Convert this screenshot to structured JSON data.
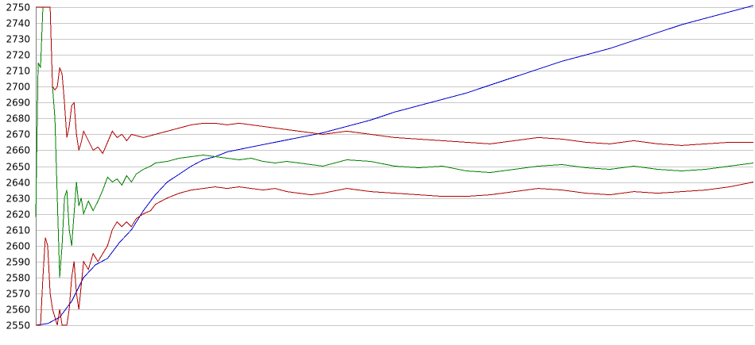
{
  "chart_data": {
    "type": "line",
    "title": "",
    "xlabel": "",
    "ylabel": "",
    "grid": true,
    "legend": "none",
    "ylim": [
      2550,
      2750
    ],
    "xlim": [
      0,
      300
    ],
    "y_ticks": [
      "2550",
      "2560",
      "2570",
      "2580",
      "2590",
      "2600",
      "2610",
      "2620",
      "2630",
      "2640",
      "2650",
      "2660",
      "2670",
      "2680",
      "2690",
      "2700",
      "2710",
      "2720",
      "2730",
      "2740",
      "2750"
    ],
    "series": [
      {
        "color": "#0000cc",
        "points": [
          [
            0,
            2550
          ],
          [
            5,
            2551
          ],
          [
            10,
            2555
          ],
          [
            15,
            2565
          ],
          [
            20,
            2580
          ],
          [
            25,
            2588
          ],
          [
            30,
            2592
          ],
          [
            35,
            2602
          ],
          [
            40,
            2610
          ],
          [
            45,
            2622
          ],
          [
            50,
            2632
          ],
          [
            55,
            2640
          ],
          [
            60,
            2645
          ],
          [
            65,
            2650
          ],
          [
            70,
            2654
          ],
          [
            75,
            2656
          ],
          [
            80,
            2659
          ],
          [
            90,
            2662
          ],
          [
            100,
            2665
          ],
          [
            110,
            2668
          ],
          [
            120,
            2671
          ],
          [
            130,
            2675
          ],
          [
            140,
            2679
          ],
          [
            150,
            2684
          ],
          [
            160,
            2688
          ],
          [
            170,
            2692
          ],
          [
            180,
            2696
          ],
          [
            190,
            2701
          ],
          [
            200,
            2706
          ],
          [
            210,
            2711
          ],
          [
            220,
            2716
          ],
          [
            230,
            2720
          ],
          [
            240,
            2724
          ],
          [
            250,
            2729
          ],
          [
            260,
            2734
          ],
          [
            270,
            2739
          ],
          [
            280,
            2743
          ],
          [
            290,
            2747
          ],
          [
            300,
            2751
          ]
        ]
      },
      {
        "color": "#008000",
        "points": [
          [
            0,
            2618
          ],
          [
            1,
            2715
          ],
          [
            2,
            2712
          ],
          [
            3,
            2750
          ],
          [
            6,
            2750
          ],
          [
            7,
            2700
          ],
          [
            8,
            2680
          ],
          [
            9,
            2630
          ],
          [
            10,
            2580
          ],
          [
            11,
            2600
          ],
          [
            12,
            2630
          ],
          [
            13,
            2635
          ],
          [
            14,
            2610
          ],
          [
            15,
            2600
          ],
          [
            16,
            2620
          ],
          [
            17,
            2640
          ],
          [
            18,
            2625
          ],
          [
            19,
            2630
          ],
          [
            20,
            2620
          ],
          [
            22,
            2628
          ],
          [
            24,
            2622
          ],
          [
            26,
            2628
          ],
          [
            28,
            2635
          ],
          [
            30,
            2643
          ],
          [
            32,
            2640
          ],
          [
            34,
            2642
          ],
          [
            36,
            2638
          ],
          [
            38,
            2644
          ],
          [
            40,
            2640
          ],
          [
            42,
            2645
          ],
          [
            45,
            2648
          ],
          [
            48,
            2650
          ],
          [
            50,
            2652
          ],
          [
            55,
            2653
          ],
          [
            60,
            2655
          ],
          [
            65,
            2656
          ],
          [
            70,
            2657
          ],
          [
            75,
            2656
          ],
          [
            80,
            2655
          ],
          [
            85,
            2654
          ],
          [
            90,
            2655
          ],
          [
            95,
            2653
          ],
          [
            100,
            2652
          ],
          [
            105,
            2653
          ],
          [
            110,
            2652
          ],
          [
            115,
            2651
          ],
          [
            120,
            2650
          ],
          [
            130,
            2654
          ],
          [
            140,
            2653
          ],
          [
            150,
            2650
          ],
          [
            160,
            2649
          ],
          [
            170,
            2650
          ],
          [
            180,
            2647
          ],
          [
            190,
            2646
          ],
          [
            200,
            2648
          ],
          [
            210,
            2650
          ],
          [
            220,
            2651
          ],
          [
            230,
            2649
          ],
          [
            240,
            2648
          ],
          [
            250,
            2650
          ],
          [
            260,
            2648
          ],
          [
            270,
            2647
          ],
          [
            280,
            2648
          ],
          [
            290,
            2650
          ],
          [
            300,
            2652
          ]
        ]
      },
      {
        "color": "#b00000",
        "points": [
          [
            0,
            2750
          ],
          [
            6,
            2750
          ],
          [
            7,
            2700
          ],
          [
            8,
            2698
          ],
          [
            9,
            2700
          ],
          [
            10,
            2712
          ],
          [
            11,
            2708
          ],
          [
            12,
            2690
          ],
          [
            13,
            2668
          ],
          [
            14,
            2675
          ],
          [
            15,
            2688
          ],
          [
            16,
            2690
          ],
          [
            17,
            2670
          ],
          [
            18,
            2660
          ],
          [
            19,
            2665
          ],
          [
            20,
            2672
          ],
          [
            22,
            2666
          ],
          [
            24,
            2660
          ],
          [
            26,
            2662
          ],
          [
            28,
            2658
          ],
          [
            30,
            2665
          ],
          [
            32,
            2672
          ],
          [
            34,
            2668
          ],
          [
            36,
            2670
          ],
          [
            38,
            2666
          ],
          [
            40,
            2670
          ],
          [
            45,
            2668
          ],
          [
            50,
            2670
          ],
          [
            55,
            2672
          ],
          [
            60,
            2674
          ],
          [
            65,
            2676
          ],
          [
            70,
            2677
          ],
          [
            75,
            2677
          ],
          [
            80,
            2676
          ],
          [
            85,
            2677
          ],
          [
            90,
            2676
          ],
          [
            95,
            2675
          ],
          [
            100,
            2674
          ],
          [
            105,
            2673
          ],
          [
            110,
            2672
          ],
          [
            115,
            2671
          ],
          [
            120,
            2670
          ],
          [
            130,
            2672
          ],
          [
            140,
            2670
          ],
          [
            150,
            2668
          ],
          [
            160,
            2667
          ],
          [
            170,
            2666
          ],
          [
            180,
            2665
          ],
          [
            190,
            2664
          ],
          [
            200,
            2666
          ],
          [
            210,
            2668
          ],
          [
            220,
            2667
          ],
          [
            230,
            2665
          ],
          [
            240,
            2664
          ],
          [
            250,
            2666
          ],
          [
            260,
            2664
          ],
          [
            270,
            2663
          ],
          [
            280,
            2664
          ],
          [
            290,
            2665
          ],
          [
            300,
            2665
          ]
        ]
      },
      {
        "color": "#b00000",
        "points": [
          [
            0,
            2550
          ],
          [
            2,
            2550
          ],
          [
            3,
            2580
          ],
          [
            4,
            2605
          ],
          [
            5,
            2600
          ],
          [
            6,
            2570
          ],
          [
            7,
            2560
          ],
          [
            8,
            2555
          ],
          [
            9,
            2550
          ],
          [
            10,
            2560
          ],
          [
            11,
            2550
          ],
          [
            12,
            2550
          ],
          [
            13,
            2550
          ],
          [
            14,
            2560
          ],
          [
            15,
            2580
          ],
          [
            16,
            2590
          ],
          [
            17,
            2570
          ],
          [
            18,
            2560
          ],
          [
            19,
            2575
          ],
          [
            20,
            2590
          ],
          [
            22,
            2585
          ],
          [
            24,
            2595
          ],
          [
            26,
            2590
          ],
          [
            28,
            2595
          ],
          [
            30,
            2600
          ],
          [
            32,
            2610
          ],
          [
            34,
            2615
          ],
          [
            36,
            2612
          ],
          [
            38,
            2615
          ],
          [
            40,
            2612
          ],
          [
            42,
            2617
          ],
          [
            45,
            2620
          ],
          [
            48,
            2622
          ],
          [
            50,
            2626
          ],
          [
            55,
            2630
          ],
          [
            60,
            2633
          ],
          [
            65,
            2635
          ],
          [
            70,
            2636
          ],
          [
            75,
            2637
          ],
          [
            80,
            2636
          ],
          [
            85,
            2637
          ],
          [
            90,
            2636
          ],
          [
            95,
            2635
          ],
          [
            100,
            2636
          ],
          [
            105,
            2634
          ],
          [
            110,
            2633
          ],
          [
            115,
            2632
          ],
          [
            120,
            2633
          ],
          [
            130,
            2636
          ],
          [
            140,
            2634
          ],
          [
            150,
            2633
          ],
          [
            160,
            2632
          ],
          [
            170,
            2631
          ],
          [
            180,
            2631
          ],
          [
            190,
            2632
          ],
          [
            200,
            2634
          ],
          [
            210,
            2636
          ],
          [
            220,
            2635
          ],
          [
            230,
            2633
          ],
          [
            240,
            2632
          ],
          [
            250,
            2634
          ],
          [
            260,
            2633
          ],
          [
            270,
            2634
          ],
          [
            280,
            2635
          ],
          [
            290,
            2637
          ],
          [
            300,
            2640
          ]
        ]
      }
    ]
  }
}
